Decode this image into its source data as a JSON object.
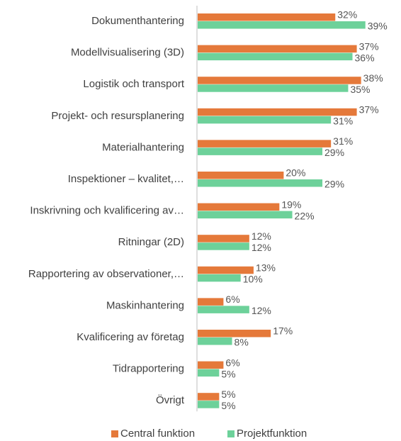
{
  "chart_data": {
    "type": "barh",
    "categories": [
      "Dokumenthantering",
      "Modellvisualisering (3D)",
      "Logistik och transport",
      "Projekt- och resursplanering",
      "Materialhantering",
      "Inspektioner – kvalitet,…",
      "Inskrivning och kvalificering av…",
      "Ritningar (2D)",
      "Rapportering av observationer,…",
      "Maskinhantering",
      "Kvalificering av företag",
      "Tidrapportering",
      "Övrigt"
    ],
    "series": [
      {
        "name": "Central funktion",
        "color": "#e5793a",
        "values": [
          32,
          37,
          38,
          37,
          31,
          20,
          19,
          12,
          13,
          6,
          17,
          6,
          5
        ],
        "value_labels": [
          "32%",
          "37%",
          "38%",
          "37%",
          "31%",
          "20%",
          "19%",
          "12%",
          "13%",
          "6%",
          "17%",
          "6%",
          "5%"
        ]
      },
      {
        "name": "Projektfunktion",
        "color": "#6dd19a",
        "values": [
          39,
          36,
          35,
          31,
          29,
          29,
          22,
          12,
          10,
          12,
          8,
          5,
          5
        ],
        "value_labels": [
          "39%",
          "36%",
          "35%",
          "31%",
          "29%",
          "29%",
          "22%",
          "12%",
          "10%",
          "12%",
          "8%",
          "5%",
          "5%"
        ]
      }
    ],
    "legend": "bottom"
  }
}
